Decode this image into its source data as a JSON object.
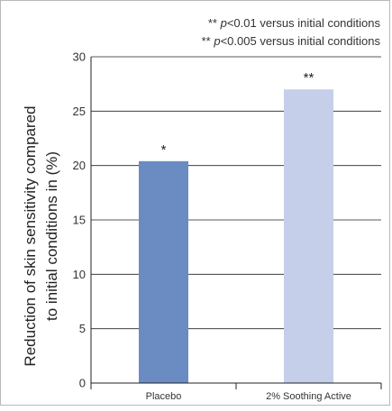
{
  "chart_data": {
    "type": "bar",
    "categories": [
      "Placebo",
      "2% Soothing Active"
    ],
    "values": [
      20.4,
      27.0
    ],
    "bar_labels": [
      "*",
      "**"
    ],
    "ylabel_lines": [
      "Reduction of skin sensitivity compared",
      "to initial conditions in (%)"
    ],
    "xlabel": "",
    "ylim": [
      0,
      30
    ],
    "yticks": [
      0,
      5,
      10,
      15,
      20,
      25,
      30
    ],
    "grid": true,
    "colors": [
      "#6b8cc2",
      "#c5cfe9"
    ],
    "notes": [
      {
        "prefix": "** ",
        "p": "p",
        "rest": "<0.01 versus initial conditions"
      },
      {
        "prefix": "** ",
        "p": "p",
        "rest": "<0.005 versus initial conditions"
      }
    ]
  }
}
